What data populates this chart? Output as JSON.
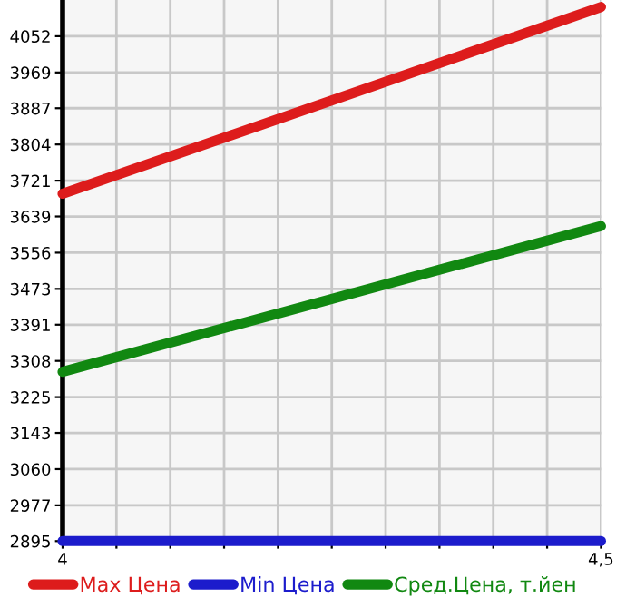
{
  "chart_data": {
    "type": "line",
    "x": [
      4,
      4.5
    ],
    "series": [
      {
        "name": "Max Цена",
        "color": "#dd1c1c",
        "values": [
          3691,
          4119
        ]
      },
      {
        "name": "Min Цена",
        "color": "#1c1ccc",
        "values": [
          2895,
          2895
        ]
      },
      {
        "name": "Сред.Цена, т.йен",
        "color": "#118811",
        "values": [
          3283,
          3617
        ]
      }
    ],
    "xlim": [
      4,
      4.5
    ],
    "xticks": [
      4,
      {
        "value": 4.05,
        "label": null
      },
      {
        "value": 4.1,
        "label": null
      },
      {
        "value": 4.15,
        "label": null
      },
      {
        "value": 4.2,
        "label": null
      },
      {
        "value": 4.25,
        "label": null
      },
      {
        "value": 4.3,
        "label": null
      },
      {
        "value": 4.35,
        "label": null
      },
      {
        "value": 4.4,
        "label": null
      },
      {
        "value": 4.45,
        "label": null
      },
      {
        "value": 4.5,
        "label": "4,5"
      }
    ],
    "ylim": [
      2895,
      4135
    ],
    "yticks": [
      2895,
      2977,
      3060,
      3143,
      3225,
      3308,
      3391,
      3473,
      3556,
      3639,
      3721,
      3804,
      3887,
      3969,
      4052
    ],
    "grid": true,
    "legend": "bottom",
    "marker": "none",
    "line_style": "solid"
  }
}
